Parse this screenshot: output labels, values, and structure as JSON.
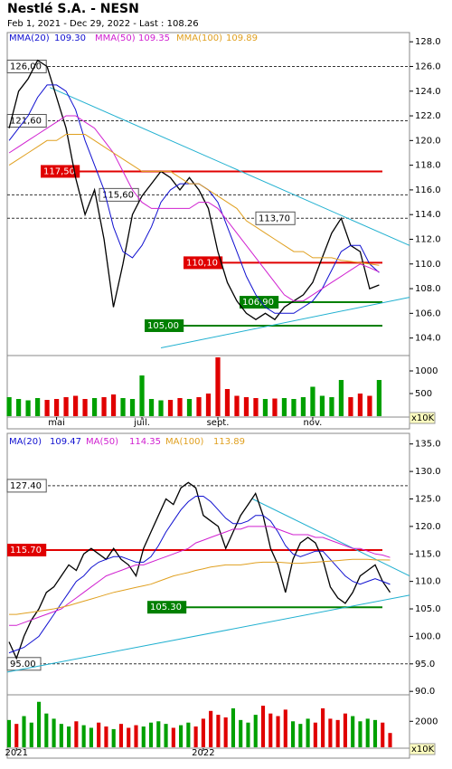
{
  "chart_data": [
    {
      "type": "ohlc-line",
      "title": "Nestlé S.A. - NESN",
      "subtitle": "Feb 1, 2021 - Dec 29, 2022 - Last : 108.26",
      "categories": [
        null,
        null,
        null,
        null,
        null,
        "mai",
        null,
        null,
        null,
        null,
        null,
        null,
        null,
        null,
        "juil.",
        null,
        null,
        null,
        null,
        null,
        null,
        null,
        "sept.",
        null,
        null,
        null,
        null,
        null,
        null,
        null,
        null,
        null,
        "nov.",
        null,
        null,
        null,
        null,
        null,
        null,
        null
      ],
      "xlim": [
        -0.2,
        42.2
      ],
      "ylim": [
        102.8,
        128.6
      ],
      "yticks": [
        {
          "value": 104,
          "label": "104.0"
        },
        {
          "value": 106,
          "label": "106.0"
        },
        {
          "value": 108,
          "label": "108.0"
        },
        {
          "value": 110,
          "label": "110.0"
        },
        {
          "value": 112,
          "label": "112.0"
        },
        {
          "value": 114,
          "label": "114.0"
        },
        {
          "value": 116,
          "label": "116.0"
        },
        {
          "value": 118,
          "label": "118.0"
        },
        {
          "value": 120,
          "label": "120.0"
        },
        {
          "value": 122,
          "label": "122.0"
        },
        {
          "value": 124,
          "label": "124.0"
        },
        {
          "value": 126,
          "label": "126.0"
        },
        {
          "value": 128,
          "label": "128.0"
        }
      ],
      "series": [
        {
          "color": "#000000",
          "values": [
            121,
            124,
            125,
            126.5,
            126,
            123.5,
            121,
            117,
            114,
            116,
            112,
            106.5,
            110,
            114,
            115.5,
            116.5,
            117.5,
            117,
            116,
            117,
            116,
            114.5,
            111,
            108.5,
            107,
            106,
            105.5,
            106,
            105.5,
            106.5,
            107,
            107.5,
            108.5,
            110.5,
            112.5,
            113.7,
            111.5,
            111,
            108,
            108.3
          ]
        },
        {
          "name": "MMA(20)",
          "color": "#1010d0",
          "last": {
            "value": 109.3,
            "label": "109.30"
          },
          "values": [
            120,
            121,
            122,
            123.5,
            124.5,
            124.5,
            124,
            122.5,
            120,
            118,
            116,
            113,
            111,
            110.5,
            111.5,
            113,
            115,
            116,
            116.5,
            116.5,
            116.5,
            116,
            115,
            113,
            111,
            109,
            107.5,
            106.5,
            106,
            106,
            106,
            106.5,
            107,
            108,
            109.5,
            111,
            111.5,
            111.5,
            110,
            109.3
          ]
        },
        {
          "name": "MMA(50)",
          "color": "#d020d0",
          "last": {
            "value": 109.35,
            "label": "109.35"
          },
          "values": [
            119,
            119.5,
            120,
            120.5,
            121,
            121.5,
            122,
            122,
            121.5,
            121,
            120,
            119,
            117.5,
            116,
            115,
            114.5,
            114.5,
            114.5,
            114.5,
            114.5,
            115,
            115,
            114.5,
            113.5,
            112.5,
            111.5,
            110.5,
            109.5,
            108.5,
            107.5,
            107,
            107,
            107.5,
            108,
            108.5,
            109,
            109.5,
            110,
            109.7,
            109.35
          ]
        },
        {
          "name": "MMA(100)",
          "color": "#e0a020",
          "last": {
            "value": 109.89,
            "label": "109.89"
          },
          "values": [
            118,
            118.5,
            119,
            119.5,
            120,
            120,
            120.5,
            120.5,
            120.5,
            120,
            119.5,
            119,
            118.5,
            118,
            117.5,
            117.5,
            117.5,
            117.5,
            117,
            116.5,
            116.5,
            116,
            115.5,
            115,
            114.5,
            113.5,
            113,
            112.5,
            112,
            111.5,
            111,
            111,
            110.5,
            110.5,
            110.5,
            110.3,
            110.2,
            110.1,
            110,
            109.89
          ]
        }
      ],
      "levels": [
        {
          "value": 126,
          "label": "126,00",
          "style": "dashed"
        },
        {
          "value": 121.6,
          "label": "121,60",
          "style": "dashed"
        },
        {
          "value": 117.5,
          "label": "117,50",
          "style": "box",
          "color": "#e00000"
        },
        {
          "value": 115.6,
          "label": "115,60",
          "style": "dashed"
        },
        {
          "value": 113.7,
          "label": "113,70",
          "style": "dashed"
        },
        {
          "value": 110.1,
          "label": "110,10",
          "style": "box",
          "color": "#e00000"
        },
        {
          "value": 106.9,
          "label": "106,90",
          "style": "box",
          "color": "#008000"
        },
        {
          "value": 105,
          "label": "105,00",
          "style": "box",
          "color": "#008000"
        }
      ],
      "trendlines": [
        {
          "color": "#20b0d0",
          "x": [
            4.3,
            42.2
          ],
          "y": [
            124.3,
            111.5
          ]
        },
        {
          "color": "#20b0d0",
          "x": [
            16,
            42.2
          ],
          "y": [
            103.2,
            107.3
          ]
        }
      ],
      "volume": {
        "unit": "x10K",
        "ylim": [
          0,
          1300
        ],
        "yticks": [
          500,
          1000
        ],
        "colors": {
          "up": "#00a000",
          "down": "#e00000"
        },
        "values": [
          420,
          380,
          350,
          400,
          360,
          380,
          420,
          450,
          380,
          400,
          420,
          480,
          400,
          380,
          900,
          380,
          350,
          360,
          400,
          380,
          420,
          500,
          1300,
          600,
          450,
          420,
          400,
          380,
          390,
          400,
          380,
          420,
          650,
          450,
          420,
          800,
          420,
          500,
          450,
          800
        ]
      }
    },
    {
      "type": "ohlc-line",
      "categories": [
        null,
        "2021",
        null,
        null,
        null,
        null,
        null,
        null,
        null,
        null,
        null,
        null,
        null,
        null,
        null,
        null,
        null,
        null,
        null,
        null,
        null,
        null,
        null,
        null,
        null,
        null,
        "2022",
        null,
        null,
        null,
        null,
        null,
        null,
        null,
        null,
        null,
        null,
        null,
        null,
        null,
        null,
        null,
        null,
        null,
        null,
        null,
        null,
        null,
        null,
        null,
        null,
        null
      ],
      "xlim": [
        -0.24,
        53.6
      ],
      "ylim": [
        89.7,
        136.6
      ],
      "yticks": [
        {
          "value": 90,
          "label": "90.0"
        },
        {
          "value": 95,
          "label": "95.0"
        },
        {
          "value": 100,
          "label": "100.0"
        },
        {
          "value": 105,
          "label": "105.0"
        },
        {
          "value": 110,
          "label": "110.0"
        },
        {
          "value": 115,
          "label": "115.0"
        },
        {
          "value": 120,
          "label": "120.0"
        },
        {
          "value": 125,
          "label": "125.0"
        },
        {
          "value": 130,
          "label": "130.0"
        },
        {
          "value": 135,
          "label": "135.0"
        }
      ],
      "series": [
        {
          "color": "#000000",
          "values": [
            99,
            96,
            100,
            103,
            105,
            108,
            109,
            111,
            113,
            112,
            115,
            116,
            115,
            114,
            116,
            114,
            113,
            111,
            116,
            119,
            122,
            125,
            124,
            127,
            128,
            127,
            122,
            121,
            120,
            116,
            119,
            122,
            124,
            126,
            122,
            116,
            113,
            108,
            114,
            117,
            118,
            117,
            114,
            109,
            107,
            106,
            108,
            111,
            112,
            113,
            110,
            108
          ]
        },
        {
          "name": "MA(20)",
          "color": "#1010d0",
          "last": {
            "value": 109.47,
            "label": "109.47"
          },
          "values": [
            97,
            97.5,
            98,
            99,
            100,
            102,
            104,
            106,
            108,
            110,
            111,
            112.5,
            113.5,
            114,
            114.5,
            114.5,
            114,
            113.5,
            113.5,
            114.5,
            116.5,
            119,
            121,
            123,
            124.5,
            125.5,
            125.5,
            124.5,
            123,
            121.5,
            120.5,
            120.5,
            121,
            122,
            122,
            121,
            119,
            116.5,
            115,
            114.5,
            115,
            115.5,
            115.5,
            114,
            112.5,
            111,
            110,
            109.5,
            110,
            110.5,
            110,
            109.47
          ]
        },
        {
          "name": "MA(50)",
          "color": "#d020d0",
          "last": {
            "value": 114.35,
            "label": "114.35"
          },
          "values": [
            102,
            102,
            102.5,
            103,
            103.5,
            104,
            104.5,
            105,
            106,
            107,
            108,
            109,
            110,
            111,
            111.5,
            112,
            112.5,
            113,
            113,
            113.5,
            114,
            114.5,
            115,
            115.5,
            116,
            117,
            117.5,
            118,
            118.5,
            119,
            119.5,
            119.5,
            120,
            120,
            120,
            120,
            119.5,
            119,
            118.5,
            118.5,
            118.5,
            118,
            118,
            117.5,
            117,
            116.5,
            116,
            116,
            115.5,
            115,
            114.8,
            114.35
          ]
        },
        {
          "name": "MA(100)",
          "color": "#e0a020",
          "last": {
            "value": 113.89,
            "label": "113.89"
          },
          "values": [
            104,
            104,
            104.2,
            104.4,
            104.6,
            104.8,
            105,
            105.3,
            105.6,
            106,
            106.4,
            106.8,
            107.2,
            107.6,
            108,
            108.3,
            108.6,
            108.9,
            109.2,
            109.5,
            110,
            110.5,
            111,
            111.3,
            111.6,
            112,
            112.3,
            112.6,
            112.8,
            113,
            113,
            113,
            113.2,
            113.4,
            113.5,
            113.5,
            113.5,
            113.4,
            113.3,
            113.3,
            113.4,
            113.5,
            113.6,
            113.7,
            113.8,
            113.9,
            114,
            114,
            114,
            113.9,
            113.9,
            113.89
          ]
        }
      ],
      "levels": [
        {
          "value": 127.4,
          "label": "127.40",
          "style": "dashed"
        },
        {
          "value": 115.7,
          "label": "115.70",
          "style": "box",
          "color": "#e00000"
        },
        {
          "value": 105.3,
          "label": "105.30",
          "style": "box",
          "color": "#008000"
        },
        {
          "value": 95,
          "label": "95.00",
          "style": "dashed"
        }
      ],
      "trendlines": [
        {
          "color": "#20b0d0",
          "x": [
            32.6,
            53.6
          ],
          "y": [
            125,
            111
          ]
        },
        {
          "color": "#20b0d0",
          "x": [
            -0.24,
            53.6
          ],
          "y": [
            93.5,
            107.5
          ]
        }
      ],
      "volume": {
        "unit": "x10K",
        "ylim": [
          0,
          3900
        ],
        "yticks": [
          2000
        ],
        "colors": {
          "up": "#00a000",
          "down": "#e00000"
        },
        "values": [
          2100,
          1800,
          2400,
          1900,
          3500,
          2600,
          2200,
          1800,
          1600,
          2000,
          1700,
          1500,
          1900,
          1600,
          1400,
          1800,
          1500,
          1700,
          1600,
          1900,
          2000,
          1800,
          1500,
          1700,
          1900,
          1600,
          2200,
          2800,
          2500,
          2300,
          3000,
          2100,
          1900,
          2500,
          3200,
          2600,
          2400,
          2900,
          2000,
          1800,
          2200,
          1900,
          3000,
          2200,
          2100,
          2600,
          2400,
          2000,
          2200,
          2100,
          1900,
          1100
        ]
      }
    }
  ]
}
